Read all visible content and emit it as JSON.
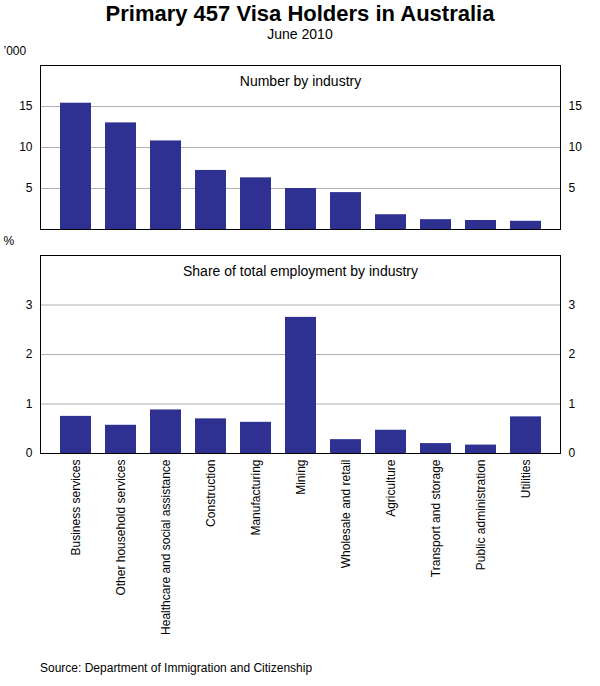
{
  "title": "Primary 457 Visa Holders in Australia",
  "subtitle": "June 2010",
  "caption": "Source: Department of Immigration and Citizenship",
  "chart_data": [
    {
      "type": "bar",
      "title": "Number by industry",
      "ylabel": "’000",
      "categories": [
        "Business services",
        "Other household services",
        "Healthcare and social assistance",
        "Construction",
        "Manufacturing",
        "Mining",
        "Wholesale and retail",
        "Agriculture",
        "Transport and storage",
        "Public administration",
        "Utilities"
      ],
      "values": [
        15.4,
        13.0,
        10.8,
        7.2,
        6.3,
        5.0,
        4.5,
        1.8,
        1.2,
        1.1,
        1.0
      ],
      "color": "#2e3192",
      "ylim": [
        0,
        20
      ],
      "yticks": [
        5,
        10,
        15
      ],
      "grid": true,
      "tick_labels": "y"
    },
    {
      "type": "bar",
      "title": "Share of total employment by industry",
      "ylabel": "%",
      "categories": [
        "Business services",
        "Other household services",
        "Healthcare and social assistance",
        "Construction",
        "Manufacturing",
        "Mining",
        "Wholesale and retail",
        "Agriculture",
        "Transport and storage",
        "Public administration",
        "Utilities"
      ],
      "values": [
        0.75,
        0.57,
        0.88,
        0.7,
        0.63,
        2.75,
        0.28,
        0.47,
        0.2,
        0.17,
        0.74
      ],
      "color": "#2e3192",
      "ylim": [
        0,
        4
      ],
      "yticks": [
        0,
        1,
        2,
        3
      ],
      "grid": true,
      "tick_labels": true
    }
  ]
}
